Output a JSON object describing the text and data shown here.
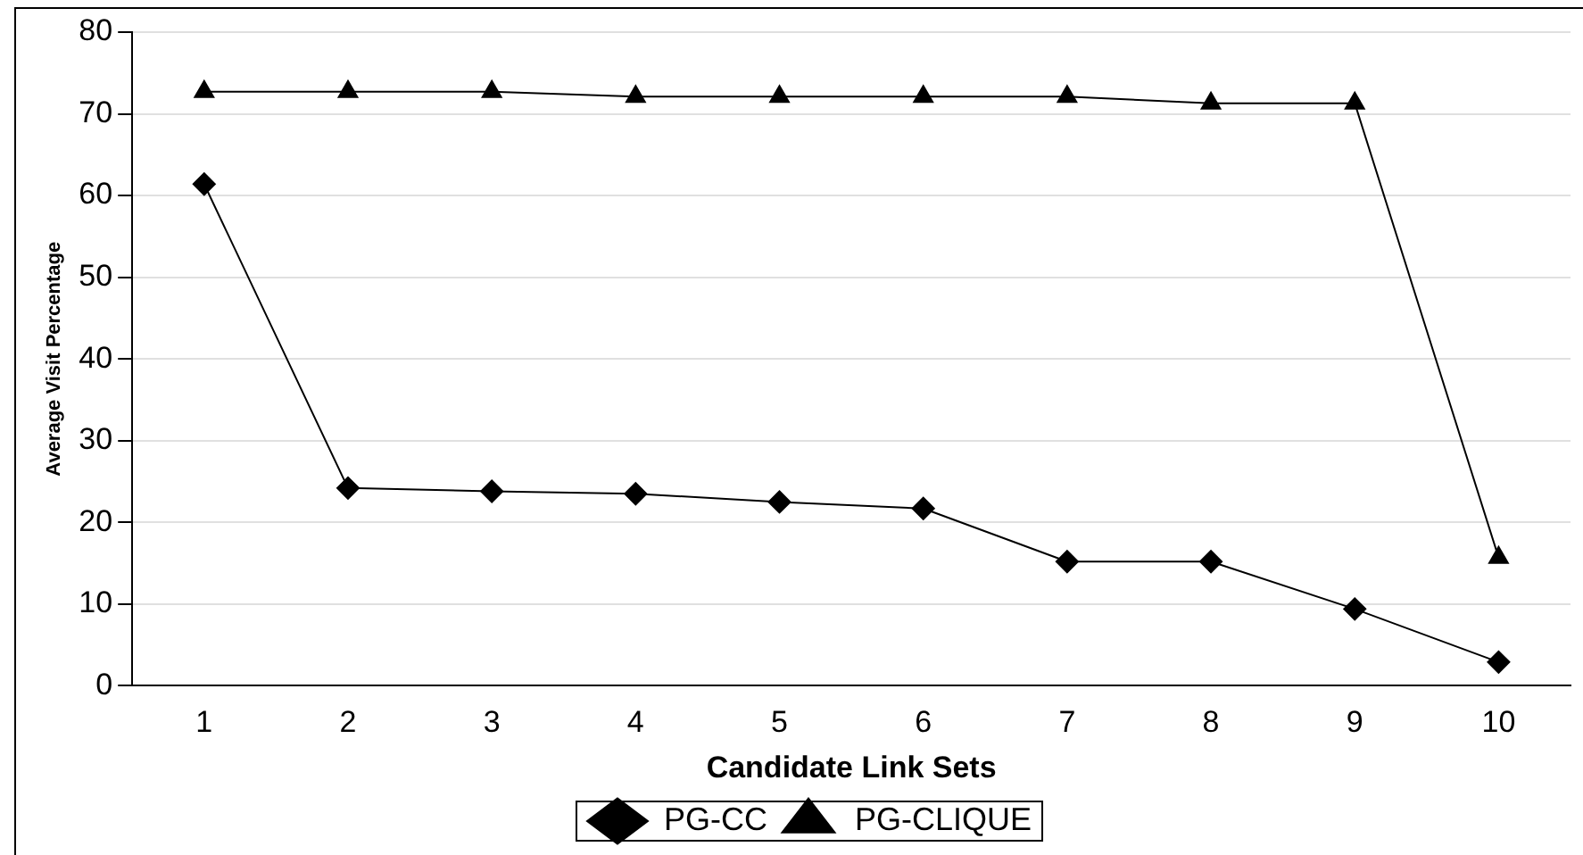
{
  "chart_data": {
    "type": "line",
    "xlabel": "Candidate Link Sets",
    "ylabel": "Average Visit Percentage",
    "categories": [
      "1",
      "2",
      "3",
      "4",
      "5",
      "6",
      "7",
      "8",
      "9",
      "10"
    ],
    "series": [
      {
        "name": "PG-CC",
        "color": "#000000",
        "marker": "diamond",
        "values": [
          61.4,
          24.2,
          23.8,
          23.5,
          22.5,
          21.7,
          15.2,
          15.2,
          9.4,
          2.9
        ]
      },
      {
        "name": "PG-CLIQUE",
        "color": "#000000",
        "marker": "triangle",
        "values": [
          72.7,
          72.7,
          72.7,
          72.1,
          72.1,
          72.1,
          72.1,
          71.3,
          71.3,
          15.7
        ]
      }
    ],
    "ylim": [
      0,
      80
    ],
    "yticks": [
      0,
      10,
      20,
      30,
      40,
      50,
      60,
      70,
      80
    ],
    "grid": "y",
    "legend": "bottom",
    "line_style": "solid"
  }
}
